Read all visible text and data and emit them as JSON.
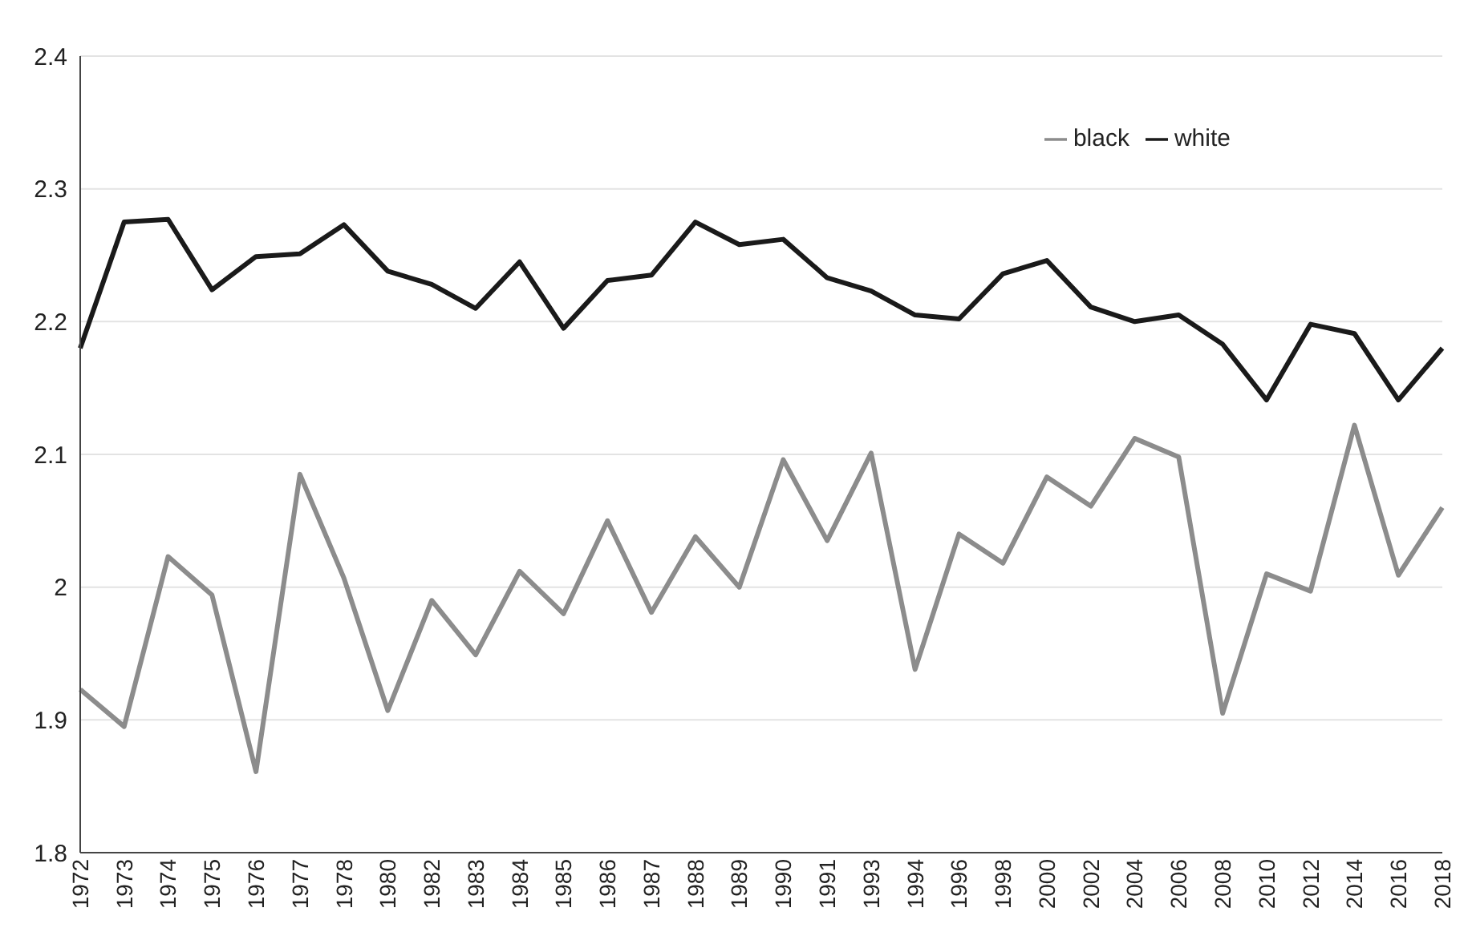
{
  "chart_data": {
    "type": "line",
    "categories": [
      "1972",
      "1973",
      "1974",
      "1975",
      "1976",
      "1977",
      "1978",
      "1980",
      "1982",
      "1983",
      "1984",
      "1985",
      "1986",
      "1987",
      "1988",
      "1989",
      "1990",
      "1991",
      "1993",
      "1994",
      "1996",
      "1998",
      "2000",
      "2002",
      "2004",
      "2006",
      "2008",
      "2010",
      "2012",
      "2014",
      "2016",
      "2018"
    ],
    "series": [
      {
        "name": "black",
        "color": "#8c8c8c",
        "values": [
          1.923,
          1.895,
          2.023,
          1.994,
          1.861,
          2.085,
          2.007,
          1.907,
          1.99,
          1.949,
          2.012,
          1.98,
          2.05,
          1.981,
          2.038,
          2.0,
          2.096,
          2.035,
          2.101,
          1.938,
          2.04,
          2.018,
          2.083,
          2.061,
          2.112,
          2.098,
          1.905,
          2.01,
          1.997,
          2.122,
          2.009,
          2.06
        ]
      },
      {
        "name": "white",
        "color": "#1a1a1a",
        "values": [
          2.18,
          2.275,
          2.277,
          2.224,
          2.249,
          2.251,
          2.273,
          2.238,
          2.228,
          2.21,
          2.245,
          2.195,
          2.231,
          2.235,
          2.275,
          2.258,
          2.262,
          2.233,
          2.223,
          2.205,
          2.202,
          2.236,
          2.246,
          2.211,
          2.2,
          2.205,
          2.183,
          2.141,
          2.198,
          2.191,
          2.141,
          2.18
        ]
      }
    ],
    "ylim": [
      1.8,
      2.4
    ],
    "yticks": [
      1.8,
      1.9,
      2,
      2.1,
      2.2,
      2.3,
      2.4
    ],
    "grid": "y",
    "legend": "top right",
    "marker": "none",
    "line_style": "solid"
  }
}
